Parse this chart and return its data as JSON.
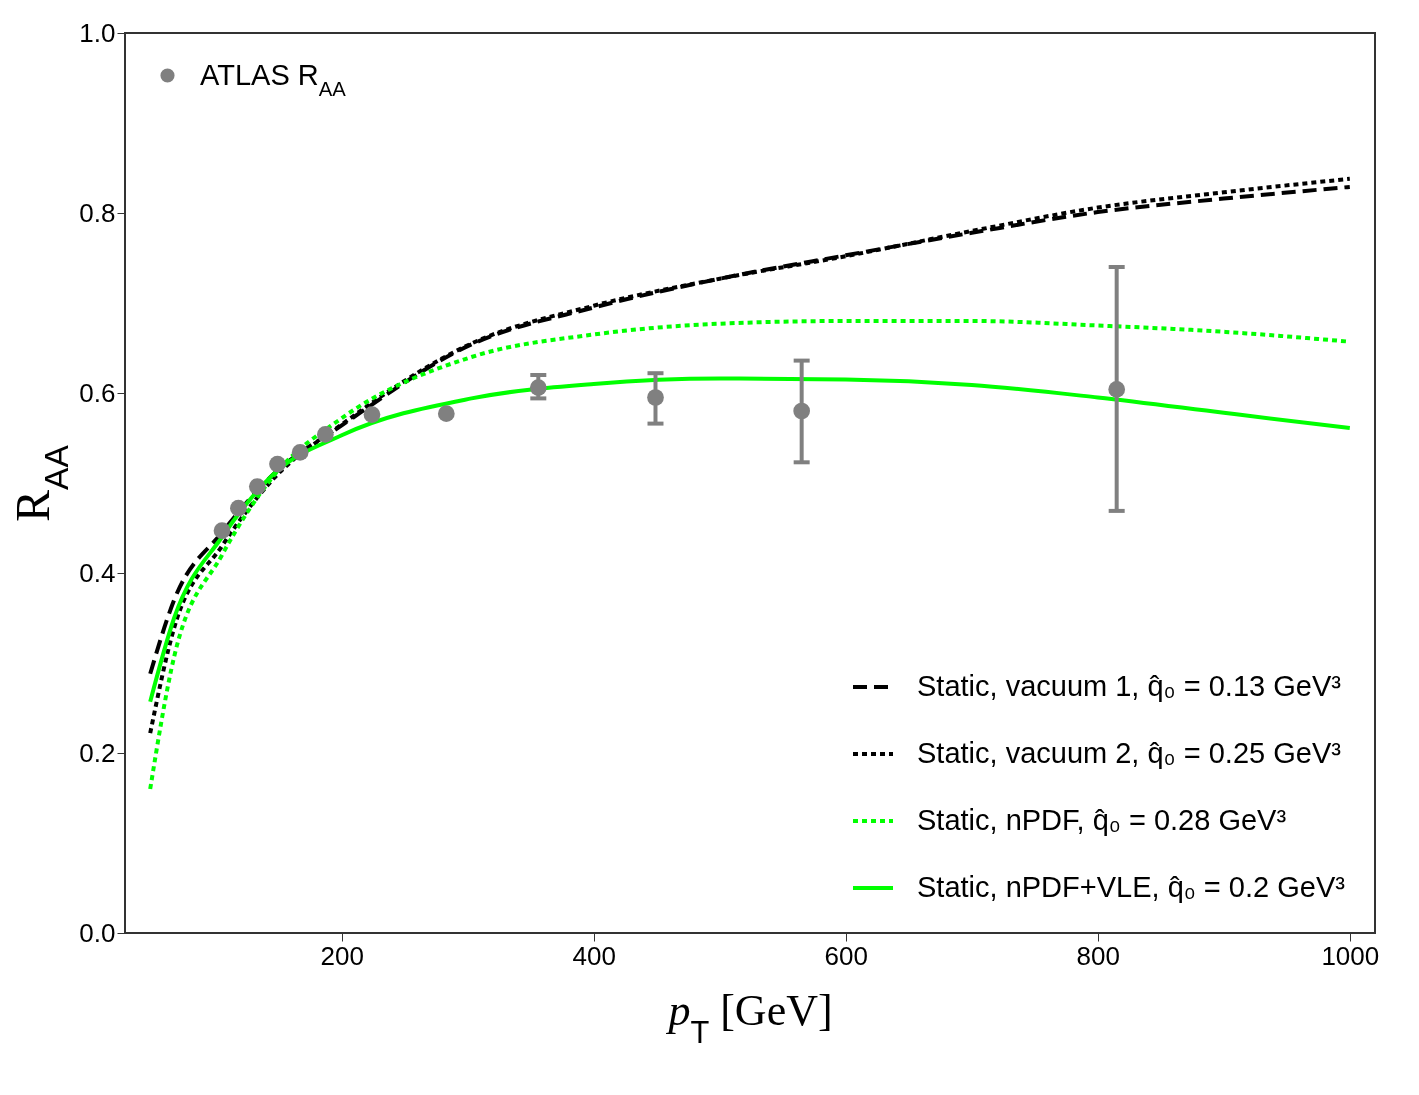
{
  "chart_data": {
    "type": "line",
    "xlabel": "p$_{T}$ [GeV]",
    "ylabel": "R$_{AA}$",
    "x": [
      48,
      67,
      105,
      146,
      200,
      303,
      400,
      500,
      600,
      700,
      800,
      900,
      1000
    ],
    "series": [
      {
        "name": "Static, vacuum 1, q̂₀ = 0.13 GeV³",
        "color": "#000000",
        "line_style": "dashed",
        "values": [
          0.288,
          0.37,
          0.445,
          0.51,
          0.564,
          0.654,
          0.695,
          0.727,
          0.753,
          0.778,
          0.801,
          0.816,
          0.829
        ]
      },
      {
        "name": "Static, vacuum 2, q̂₀ = 0.25 GeV³",
        "color": "#000000",
        "line_style": "dotted",
        "values": [
          0.222,
          0.339,
          0.43,
          0.505,
          0.565,
          0.655,
          0.697,
          0.727,
          0.752,
          0.78,
          0.806,
          0.823,
          0.838
        ]
      },
      {
        "name": "Static, nPDF, q̂₀ = 0.28 GeV³",
        "color": "#00ff00",
        "line_style": "dotted",
        "values": [
          0.16,
          0.307,
          0.42,
          0.508,
          0.572,
          0.64,
          0.665,
          0.677,
          0.68,
          0.68,
          0.675,
          0.668,
          0.657
        ]
      },
      {
        "name": "Static, nPDF+VLE, q̂₀ = 0.2 GeV³",
        "color": "#00ff00",
        "line_style": "solid",
        "values": [
          0.257,
          0.35,
          0.44,
          0.51,
          0.553,
          0.594,
          0.61,
          0.616,
          0.615,
          0.609,
          0.595,
          0.578,
          0.561
        ]
      },
      {
        "name": "ATLAS R$_{AA}$",
        "type": "scatter",
        "marker": "circle",
        "color": "#808080",
        "x": [
          105,
          118,
          133,
          149,
          167,
          187,
          224,
          283,
          356,
          449,
          565,
          815
        ],
        "values": [
          0.447,
          0.472,
          0.496,
          0.521,
          0.534,
          0.554,
          0.576,
          0.577,
          0.606,
          0.595,
          0.58,
          0.604
        ],
        "errors": [
          null,
          null,
          null,
          null,
          null,
          null,
          null,
          null,
          [
            0.594,
            0.62
          ],
          [
            0.566,
            0.622
          ],
          [
            0.523,
            0.636
          ],
          [
            0.469,
            0.74
          ]
        ]
      }
    ],
    "xlim": [
      28,
      1020
    ],
    "xticks": [
      200,
      400,
      600,
      800,
      1000
    ],
    "ylim": [
      0,
      1
    ],
    "yticks": [
      {
        "value": 0,
        "label": "0.0"
      },
      {
        "value": 0.2,
        "label": "0.2"
      },
      {
        "value": 0.4,
        "label": "0.4"
      },
      {
        "value": 0.6,
        "label": "0.6"
      },
      {
        "value": 0.8,
        "label": "0.8"
      },
      {
        "value": 1,
        "label": "1.0"
      }
    ],
    "grid": false,
    "legend": "bottom right"
  }
}
